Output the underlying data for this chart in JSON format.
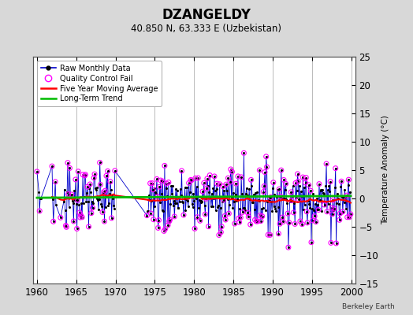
{
  "title": "DZANGELDY",
  "subtitle": "40.850 N, 63.333 E (Uzbekistan)",
  "ylabel": "Temperature Anomaly (°C)",
  "credit": "Berkeley Earth",
  "xlim": [
    1959.5,
    2000.5
  ],
  "ylim": [
    -15,
    25
  ],
  "yticks": [
    -15,
    -10,
    -5,
    0,
    5,
    10,
    15,
    20,
    25
  ],
  "xticks": [
    1960,
    1965,
    1970,
    1975,
    1980,
    1985,
    1990,
    1995,
    2000
  ],
  "bg_color": "#d8d8d8",
  "plot_bg": "#ffffff",
  "grid_color": "#b0b0b0",
  "raw_line_color": "#0000cc",
  "raw_dot_color": "#000000",
  "qc_color": "#ff00ff",
  "moving_avg_color": "#ff0000",
  "trend_color": "#00bb00",
  "legend_labels": [
    "Raw Monthly Data",
    "Quality Control Fail",
    "Five Year Moving Average",
    "Long-Term Trend"
  ]
}
